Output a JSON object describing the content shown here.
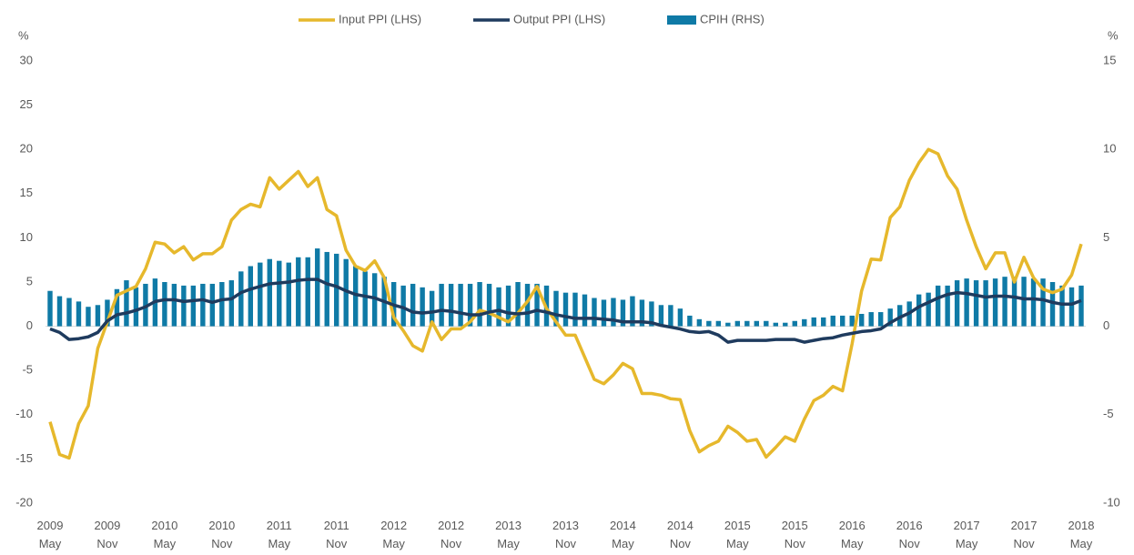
{
  "chart_data": {
    "type": "bar-line",
    "y_label": "%",
    "y2_label": "%",
    "categories": [
      "2009 May",
      null,
      null,
      null,
      null,
      null,
      "2009 Nov",
      null,
      null,
      null,
      null,
      null,
      "2010 May",
      null,
      null,
      null,
      null,
      null,
      "2010 Nov",
      null,
      null,
      null,
      null,
      null,
      "2011 May",
      null,
      null,
      null,
      null,
      null,
      "2011 Nov",
      null,
      null,
      null,
      null,
      null,
      "2012 May",
      null,
      null,
      null,
      null,
      null,
      "2012 Nov",
      null,
      null,
      null,
      null,
      null,
      "2013 May",
      null,
      null,
      null,
      null,
      null,
      "2013 Nov",
      null,
      null,
      null,
      null,
      null,
      "2014 May",
      null,
      null,
      null,
      null,
      null,
      "2014 Nov",
      null,
      null,
      null,
      null,
      null,
      "2015 May",
      null,
      null,
      null,
      null,
      null,
      "2015 Nov",
      null,
      null,
      null,
      null,
      null,
      "2016 May",
      null,
      null,
      null,
      null,
      null,
      "2016 Nov",
      null,
      null,
      null,
      null,
      null,
      "2017 May",
      null,
      null,
      null,
      null,
      null,
      "2017 Nov",
      null,
      null,
      null,
      null,
      null,
      "2018 May"
    ],
    "series": [
      {
        "name": "Input PPI (LHS)",
        "type": "line",
        "axis": "y",
        "color": "#e6b82c",
        "values": [
          -10.8,
          -14.5,
          -14.9,
          -11.0,
          -9.0,
          -2.5,
          0.5,
          3.5,
          4.0,
          4.5,
          6.5,
          9.5,
          9.3,
          8.3,
          9.0,
          7.5,
          8.2,
          8.2,
          9.0,
          12.0,
          13.2,
          13.8,
          13.5,
          16.8,
          15.5,
          16.5,
          17.5,
          15.8,
          16.8,
          13.2,
          12.5,
          8.6,
          6.8,
          6.3,
          7.4,
          5.5,
          1.0,
          -0.5,
          -2.2,
          -2.8,
          0.5,
          -1.5,
          -0.3,
          -0.3,
          0.5,
          1.8,
          1.5,
          1.0,
          0.5,
          1.5,
          2.8,
          4.5,
          2.0,
          0.5,
          -1.0,
          -1.0,
          -3.5,
          -6.0,
          -6.5,
          -5.5,
          -4.2,
          -4.8,
          -7.6,
          -7.6,
          -7.8,
          -8.2,
          -8.3,
          -11.8,
          -14.2,
          -13.5,
          -13.0,
          -11.3,
          -12.0,
          -13.0,
          -12.8,
          -14.8,
          -13.7,
          -12.5,
          -13.0,
          -10.5,
          -8.4,
          -7.8,
          -6.8,
          -7.3,
          -2.0,
          4.0,
          7.6,
          7.5,
          12.3,
          13.5,
          16.5,
          18.5,
          20.0,
          19.5,
          17.0,
          15.5,
          12.0,
          9.0,
          6.5,
          8.3,
          8.3,
          5.0,
          7.8,
          5.5,
          4.2,
          3.8,
          4.2,
          5.8,
          9.3
        ]
      },
      {
        "name": "Output PPI (LHS)",
        "type": "line",
        "axis": "y",
        "color": "#1f3b5e",
        "values": [
          -0.3,
          -0.7,
          -1.5,
          -1.4,
          -1.2,
          -0.7,
          0.6,
          1.3,
          1.5,
          1.8,
          2.2,
          2.8,
          3.0,
          3.0,
          2.8,
          2.9,
          3.0,
          2.7,
          3.0,
          3.1,
          3.8,
          4.2,
          4.5,
          4.8,
          4.9,
          5.0,
          5.2,
          5.3,
          5.3,
          4.8,
          4.5,
          4.0,
          3.6,
          3.4,
          3.2,
          2.8,
          2.4,
          2.1,
          1.6,
          1.5,
          1.6,
          1.8,
          1.7,
          1.5,
          1.3,
          1.3,
          1.6,
          1.8,
          1.5,
          1.4,
          1.5,
          1.8,
          1.6,
          1.3,
          1.1,
          0.9,
          0.9,
          0.9,
          0.8,
          0.7,
          0.5,
          0.5,
          0.5,
          0.4,
          0.1,
          -0.1,
          -0.3,
          -0.6,
          -0.7,
          -0.6,
          -1.0,
          -1.8,
          -1.6,
          -1.6,
          -1.6,
          -1.6,
          -1.5,
          -1.5,
          -1.5,
          -1.8,
          -1.6,
          -1.4,
          -1.3,
          -1.0,
          -0.8,
          -0.6,
          -0.5,
          -0.3,
          0.4,
          1.0,
          1.5,
          2.2,
          2.7,
          3.2,
          3.6,
          3.8,
          3.7,
          3.5,
          3.3,
          3.4,
          3.4,
          3.3,
          3.1,
          3.1,
          3.0,
          2.7,
          2.5,
          2.5,
          2.9
        ]
      },
      {
        "name": "CPIH (RHS)",
        "type": "bar",
        "axis": "y2",
        "color": "#0f7aa6",
        "values": [
          2.0,
          1.7,
          1.6,
          1.4,
          1.1,
          1.2,
          1.5,
          2.1,
          2.6,
          2.2,
          2.4,
          2.7,
          2.5,
          2.4,
          2.3,
          2.3,
          2.4,
          2.4,
          2.5,
          2.6,
          3.1,
          3.4,
          3.6,
          3.8,
          3.7,
          3.6,
          3.9,
          3.9,
          4.4,
          4.2,
          4.1,
          3.8,
          3.4,
          3.1,
          3.0,
          2.8,
          2.5,
          2.3,
          2.4,
          2.2,
          2.0,
          2.4,
          2.4,
          2.4,
          2.4,
          2.5,
          2.4,
          2.2,
          2.3,
          2.5,
          2.4,
          2.4,
          2.3,
          2.0,
          1.9,
          1.9,
          1.8,
          1.6,
          1.5,
          1.6,
          1.5,
          1.7,
          1.5,
          1.4,
          1.2,
          1.2,
          1.0,
          0.6,
          0.4,
          0.3,
          0.3,
          0.2,
          0.3,
          0.3,
          0.3,
          0.3,
          0.2,
          0.2,
          0.3,
          0.4,
          0.5,
          0.5,
          0.6,
          0.6,
          0.6,
          0.7,
          0.8,
          0.8,
          1.0,
          1.2,
          1.4,
          1.8,
          1.9,
          2.3,
          2.3,
          2.6,
          2.7,
          2.6,
          2.6,
          2.7,
          2.8,
          2.8,
          2.8,
          2.7,
          2.7,
          2.5,
          2.3,
          2.2,
          2.3
        ]
      }
    ],
    "ylim": [
      -20,
      30
    ],
    "yticks": [
      -20,
      -15,
      -10,
      -5,
      0,
      5,
      10,
      15,
      20,
      25,
      30
    ],
    "y2lim": [
      -10,
      15
    ],
    "y2ticks": [
      -10,
      -5,
      0,
      5,
      10,
      15
    ],
    "grid": false
  }
}
